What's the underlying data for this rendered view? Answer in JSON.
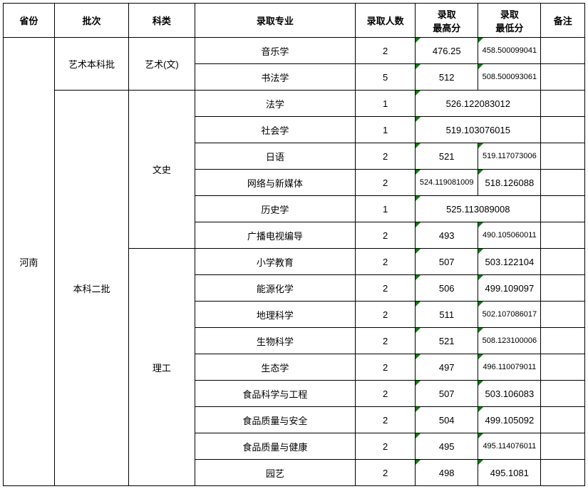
{
  "headers": {
    "province": "省份",
    "batch": "批次",
    "category": "科类",
    "major": "录取专业",
    "num": "录取人数",
    "high": "录取\n最高分",
    "low": "录取\n最低分",
    "note": "备注"
  },
  "province": "河南",
  "batches": [
    {
      "name": "艺术本科批",
      "categories": [
        {
          "name": "艺术(文)",
          "rows": [
            {
              "major": "音乐学",
              "num": "2",
              "high": "476.25",
              "low": "458.500099041",
              "merged": false,
              "high_small": false,
              "low_small": true
            },
            {
              "major": "书法学",
              "num": "5",
              "high": "512",
              "low": "508.500093061",
              "merged": false,
              "high_small": false,
              "low_small": true
            }
          ]
        }
      ]
    },
    {
      "name": "本科二批",
      "categories": [
        {
          "name": "文史",
          "rows": [
            {
              "major": "法学",
              "num": "1",
              "merged": true,
              "merged_val": "526.122083012"
            },
            {
              "major": "社会学",
              "num": "1",
              "merged": true,
              "merged_val": "519.103076015"
            },
            {
              "major": "日语",
              "num": "2",
              "high": "521",
              "low": "519.117073006",
              "merged": false,
              "high_small": false,
              "low_small": true
            },
            {
              "major": "网络与新媒体",
              "num": "2",
              "high": "524.119081009",
              "low": "518.126088",
              "merged": false,
              "high_small": true,
              "low_small": false
            },
            {
              "major": "历史学",
              "num": "1",
              "merged": true,
              "merged_val": "525.113089008"
            },
            {
              "major": "广播电视编导",
              "num": "2",
              "high": "493",
              "low": "490.105060011",
              "merged": false,
              "high_small": false,
              "low_small": true
            }
          ]
        },
        {
          "name": "理工",
          "rows": [
            {
              "major": "小学教育",
              "num": "2",
              "high": "507",
              "low": "503.122104",
              "merged": false,
              "low_small": false
            },
            {
              "major": "能源化学",
              "num": "2",
              "high": "506",
              "low": "499.109097",
              "merged": false,
              "low_small": false
            },
            {
              "major": "地理科学",
              "num": "2",
              "high": "511",
              "low": "502.107086017",
              "merged": false,
              "low_small": true
            },
            {
              "major": "生物科学",
              "num": "2",
              "high": "521",
              "low": "508.123100006",
              "merged": false,
              "low_small": true
            },
            {
              "major": "生态学",
              "num": "2",
              "high": "497",
              "low": "496.110079011",
              "merged": false,
              "low_small": true
            },
            {
              "major": "食品科学与工程",
              "num": "2",
              "high": "507",
              "low": "503.106083",
              "merged": false,
              "low_small": false
            },
            {
              "major": "食品质量与安全",
              "num": "2",
              "high": "504",
              "low": "499.105092",
              "merged": false,
              "low_small": false
            },
            {
              "major": "食品质量与健康",
              "num": "2",
              "high": "495",
              "low": "495.114076011",
              "merged": false,
              "low_small": true
            },
            {
              "major": "园艺",
              "num": "2",
              "high": "498",
              "low": "495.1081",
              "merged": false,
              "low_small": false
            }
          ]
        }
      ]
    }
  ]
}
